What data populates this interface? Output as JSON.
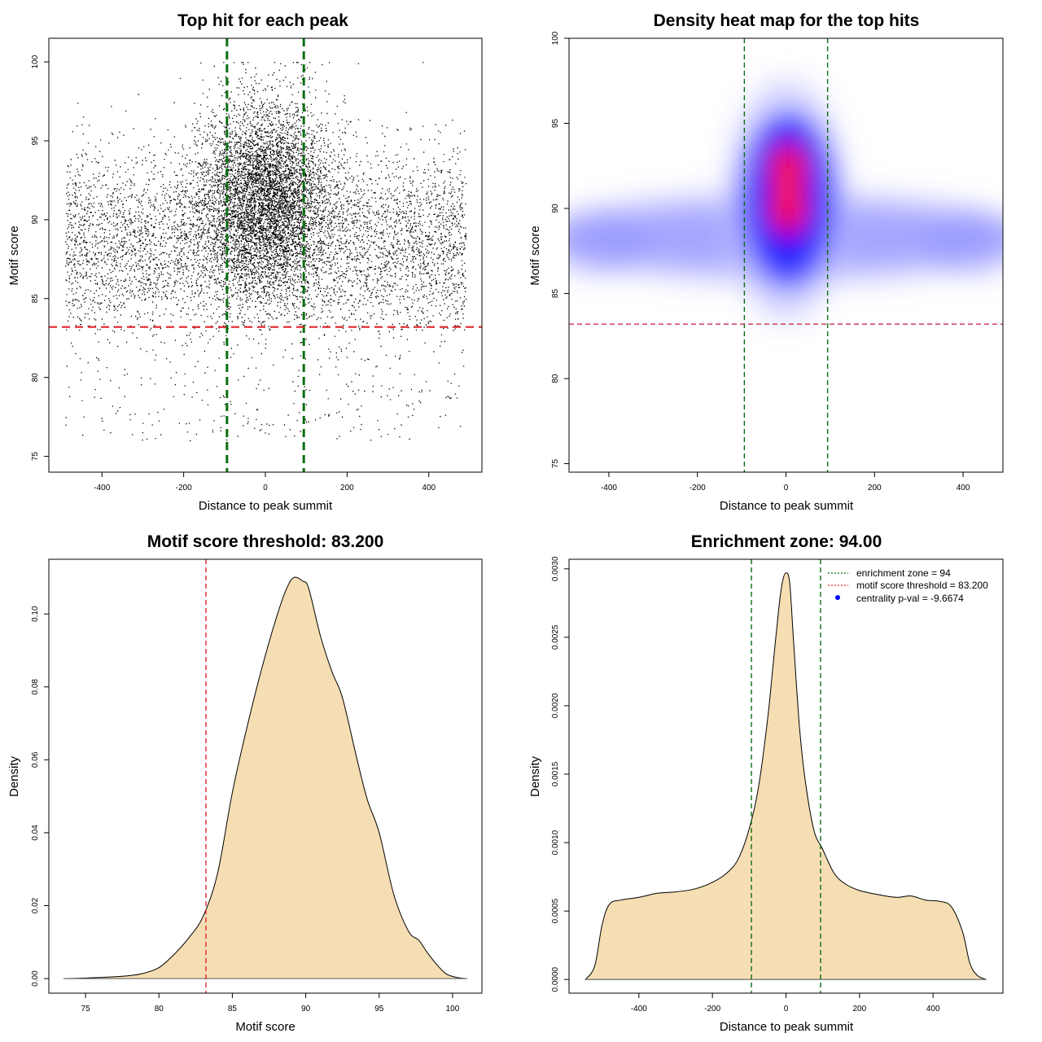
{
  "colors": {
    "zone_line": "#0a6e12",
    "threshold_line": "#e0232a",
    "heat_threshold_line": "#c8324e",
    "density_fill": "#f5deb3",
    "scatter_point": "#000000",
    "legend_dot": "#0000ff"
  },
  "chart_data": [
    {
      "id": "scatter",
      "type": "scatter",
      "title": "Top hit for each peak",
      "xlabel": "Distance to peak summit",
      "ylabel": "Motif score",
      "xlim": [
        -530,
        530
      ],
      "ylim": [
        74,
        101.5
      ],
      "xticks": [
        -400,
        -200,
        0,
        200,
        400
      ],
      "yticks": [
        75,
        80,
        85,
        90,
        95,
        100
      ],
      "vlines": [
        -94,
        94
      ],
      "hline": 83.2,
      "point_cloud": {
        "x_range": [
          -490,
          490
        ],
        "core_x_sd": 140,
        "core_y_mean": 91.5,
        "core_y_sd": 3.0,
        "background_y_mean": 88.5,
        "background_y_sd": 3.0,
        "y_min_dense": 83,
        "y_max": 100
      }
    },
    {
      "id": "heatmap",
      "type": "heatmap",
      "title": "Density heat map for the top hits",
      "xlabel": "Distance to peak summit",
      "ylabel": "Motif score",
      "xlim": [
        -490,
        490
      ],
      "ylim": [
        74.5,
        100
      ],
      "xticks": [
        -400,
        -200,
        0,
        200,
        400
      ],
      "yticks": [
        75,
        80,
        85,
        90,
        95,
        100
      ],
      "vlines": [
        -94,
        94
      ],
      "hline": 83.2,
      "hot_spots": [
        {
          "x": 5,
          "y": 92.3,
          "level": "red"
        },
        {
          "x": 5,
          "y": 90.0,
          "level": "red"
        }
      ]
    },
    {
      "id": "score-density",
      "type": "area",
      "title": "Motif score threshold: 83.200",
      "xlabel": "Motif score",
      "ylabel": "Density",
      "xlim": [
        72.5,
        102
      ],
      "ylim": [
        -0.004,
        0.115
      ],
      "xticks": [
        75,
        80,
        85,
        90,
        95,
        100
      ],
      "yticks": [
        0.0,
        0.02,
        0.04,
        0.06,
        0.08,
        0.1
      ],
      "ytick_labels": [
        "0.00",
        "0.02",
        "0.04",
        "0.06",
        "0.08",
        "0.10"
      ],
      "vline": 83.2,
      "x": [
        73.5,
        76,
        78,
        79,
        80,
        81,
        82,
        83,
        84,
        85,
        86,
        87,
        88,
        88.7,
        89.2,
        89.8,
        90.2,
        91,
        91.8,
        92.5,
        93.5,
        94.2,
        95,
        96,
        97,
        97.7,
        98.3,
        99,
        99.6,
        100.3,
        101
      ],
      "y": [
        0,
        0.0003,
        0.0008,
        0.0015,
        0.003,
        0.0065,
        0.011,
        0.017,
        0.029,
        0.051,
        0.069,
        0.085,
        0.099,
        0.107,
        0.11,
        0.109,
        0.107,
        0.094,
        0.084,
        0.077,
        0.06,
        0.049,
        0.04,
        0.023,
        0.013,
        0.0105,
        0.007,
        0.0035,
        0.0012,
        0.0003,
        0
      ]
    },
    {
      "id": "distance-density",
      "type": "area",
      "title": "Enrichment zone: 94.00",
      "xlabel": "Distance to peak summit",
      "ylabel": "Density",
      "xlim": [
        -590,
        590
      ],
      "ylim": [
        -0.0001,
        0.00307
      ],
      "xticks": [
        -400,
        -200,
        0,
        200,
        400
      ],
      "yticks": [
        0.0,
        0.0005,
        0.001,
        0.0015,
        0.002,
        0.0025,
        0.003
      ],
      "ytick_labels": [
        "0.0000",
        "0.0005",
        "0.0010",
        "0.0015",
        "0.0020",
        "0.0025",
        "0.0030"
      ],
      "vlines": [
        -94,
        94
      ],
      "x": [
        -545,
        -520,
        -500,
        -480,
        -450,
        -400,
        -350,
        -300,
        -250,
        -200,
        -160,
        -130,
        -100,
        -75,
        -50,
        -35,
        -20,
        -10,
        0,
        10,
        20,
        35,
        50,
        75,
        100,
        130,
        160,
        200,
        250,
        300,
        340,
        380,
        420,
        450,
        480,
        500,
        520,
        545
      ],
      "y": [
        0,
        0.0001,
        0.0004,
        0.00055,
        0.00058,
        0.0006,
        0.00063,
        0.00064,
        0.00066,
        0.00071,
        0.00078,
        0.00088,
        0.0011,
        0.0014,
        0.0019,
        0.0023,
        0.0027,
        0.0029,
        0.00297,
        0.0029,
        0.0025,
        0.0019,
        0.0015,
        0.0011,
        0.00095,
        0.00078,
        0.0007,
        0.00065,
        0.00062,
        0.0006,
        0.00061,
        0.00058,
        0.00057,
        0.00053,
        0.00035,
        0.00012,
        3e-05,
        0
      ],
      "legend": [
        {
          "label": "enrichment zone = 94",
          "style": "dotted-line",
          "color": "#0a6e12"
        },
        {
          "label": "motif score threshold = 83.200",
          "style": "dotted-line",
          "color": "#e0232a"
        },
        {
          "label": "centrality p-val = -9.6674",
          "style": "dot",
          "color": "#0000ff"
        }
      ]
    }
  ]
}
